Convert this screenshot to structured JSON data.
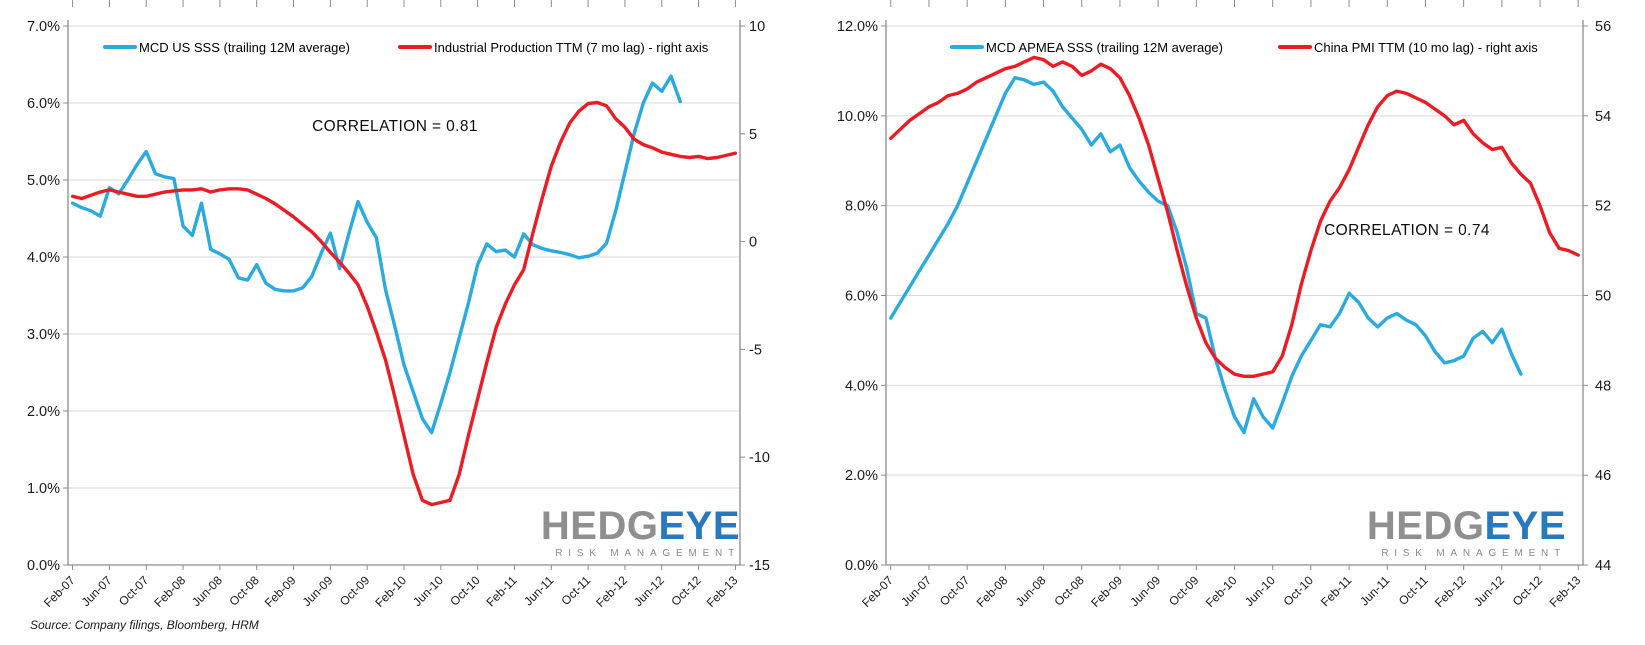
{
  "source_note": "Source: Company filings, Bloomberg, HRM",
  "logo": {
    "gray_part": "HEDG",
    "blue_part": "EYE",
    "tagline": "RISK MANAGEMENT"
  },
  "colors": {
    "blue_series": "#29ABE2",
    "red_series": "#ED1C24",
    "gridline": "#D9D9D9",
    "axis": "#8C8C8C"
  },
  "chart_data": [
    {
      "type": "line",
      "annotation": "CORRELATION  = 0.81",
      "x_tick_labels": [
        "Feb-07",
        "Jun-07",
        "Oct-07",
        "Feb-08",
        "Jun-08",
        "Oct-08",
        "Feb-09",
        "Jun-09",
        "Oct-09",
        "Feb-10",
        "Jun-10",
        "Oct-10",
        "Feb-11",
        "Jun-11",
        "Oct-11",
        "Feb-12",
        "Jun-12",
        "Oct-12",
        "Feb-13"
      ],
      "left_axis": {
        "min": 0,
        "max": 7,
        "tick_labels": [
          "7.0%",
          "6.0%",
          "5.0%",
          "4.0%",
          "3.0%",
          "2.0%",
          "1.0%",
          "0.0%"
        ]
      },
      "right_axis": {
        "min": -15,
        "max": 10,
        "tick_labels": [
          "10",
          "5",
          "0",
          "-5",
          "-10",
          "-15"
        ]
      },
      "series": [
        {
          "name": "MCD US SSS (trailing 12M average)",
          "color": "#29ABE2",
          "axis": "left",
          "start_month": "Feb-07",
          "end_month": "Aug-12",
          "values": [
            4.7,
            4.64,
            4.6,
            4.53,
            4.9,
            4.82,
            5.0,
            5.2,
            5.37,
            5.08,
            5.04,
            5.02,
            4.4,
            4.28,
            4.7,
            4.1,
            4.04,
            3.97,
            3.73,
            3.7,
            3.9,
            3.66,
            3.58,
            3.56,
            3.56,
            3.6,
            3.75,
            4.05,
            4.31,
            3.85,
            4.3,
            4.72,
            4.45,
            4.25,
            3.57,
            3.1,
            2.6,
            2.25,
            1.9,
            1.72,
            2.1,
            2.5,
            2.95,
            3.4,
            3.9,
            4.17,
            4.07,
            4.09,
            4.0,
            4.3,
            4.16,
            4.11,
            4.08,
            4.06,
            4.03,
            3.99,
            4.01,
            4.05,
            4.18,
            4.6,
            5.1,
            5.6,
            6.0,
            6.26,
            6.15,
            6.35,
            6.02
          ]
        },
        {
          "name": "Industrial Production TTM (7 mo lag) - right axis",
          "color": "#ED1C24",
          "axis": "right",
          "start_month": "Feb-07",
          "end_month": "Feb-13",
          "values": [
            2.1,
            2.0,
            2.15,
            2.3,
            2.4,
            2.3,
            2.2,
            2.1,
            2.1,
            2.2,
            2.3,
            2.35,
            2.4,
            2.4,
            2.45,
            2.3,
            2.4,
            2.45,
            2.45,
            2.4,
            2.2,
            2.0,
            1.75,
            1.45,
            1.15,
            0.8,
            0.45,
            0.0,
            -0.5,
            -0.95,
            -1.45,
            -2.0,
            -3.0,
            -4.2,
            -5.5,
            -7.2,
            -9.0,
            -10.8,
            -12.0,
            -12.2,
            -12.1,
            -12.0,
            -10.8,
            -9.0,
            -7.3,
            -5.6,
            -4.0,
            -2.9,
            -2.0,
            -1.3,
            0.4,
            2.0,
            3.5,
            4.6,
            5.5,
            6.05,
            6.4,
            6.45,
            6.3,
            5.7,
            5.3,
            4.75,
            4.5,
            4.35,
            4.15,
            4.05,
            3.95,
            3.9,
            3.95,
            3.85,
            3.9,
            4.0,
            4.1
          ]
        }
      ]
    },
    {
      "type": "line",
      "annotation": "CORRELATION  = 0.74",
      "x_tick_labels": [
        "Feb-07",
        "Jun-07",
        "Oct-07",
        "Feb-08",
        "Jun-08",
        "Oct-08",
        "Feb-09",
        "Jun-09",
        "Oct-09",
        "Feb-10",
        "Jun-10",
        "Oct-10",
        "Feb-11",
        "Jun-11",
        "Oct-11",
        "Feb-12",
        "Jun-12",
        "Oct-12",
        "Feb-13"
      ],
      "left_axis": {
        "min": 0,
        "max": 12,
        "tick_labels": [
          "12.0%",
          "10.0%",
          "8.0%",
          "6.0%",
          "4.0%",
          "2.0%",
          "0.0%"
        ]
      },
      "right_axis": {
        "min": 44,
        "max": 56,
        "tick_labels": [
          "56",
          "54",
          "52",
          "50",
          "48",
          "46",
          "44"
        ]
      },
      "series": [
        {
          "name": "MCD APMEA SSS (trailing 12M average)",
          "color": "#29ABE2",
          "axis": "left",
          "start_month": "Feb-07",
          "end_month": "Aug-12",
          "values": [
            5.5,
            5.85,
            6.2,
            6.55,
            6.9,
            7.25,
            7.6,
            8.0,
            8.5,
            9.0,
            9.5,
            10.0,
            10.5,
            10.85,
            10.8,
            10.7,
            10.75,
            10.55,
            10.2,
            9.95,
            9.7,
            9.35,
            9.6,
            9.2,
            9.35,
            8.85,
            8.55,
            8.3,
            8.1,
            8.0,
            7.4,
            6.6,
            5.6,
            5.5,
            4.6,
            3.9,
            3.3,
            2.95,
            3.7,
            3.3,
            3.05,
            3.6,
            4.2,
            4.65,
            5.0,
            5.35,
            5.3,
            5.6,
            6.05,
            5.85,
            5.5,
            5.3,
            5.5,
            5.6,
            5.45,
            5.35,
            5.1,
            4.75,
            4.5,
            4.55,
            4.65,
            5.05,
            5.2,
            4.95,
            5.25,
            4.7,
            4.25
          ]
        },
        {
          "name": "China PMI TTM (10 mo lag) - right axis",
          "color": "#ED1C24",
          "axis": "right",
          "start_month": "Feb-07",
          "end_month": "Feb-13",
          "values": [
            53.5,
            53.7,
            53.9,
            54.05,
            54.2,
            54.3,
            54.45,
            54.5,
            54.6,
            54.75,
            54.85,
            54.95,
            55.05,
            55.1,
            55.2,
            55.3,
            55.25,
            55.1,
            55.2,
            55.1,
            54.9,
            55.0,
            55.15,
            55.05,
            54.85,
            54.45,
            53.95,
            53.35,
            52.6,
            51.85,
            51.0,
            50.2,
            49.5,
            48.95,
            48.6,
            48.4,
            48.25,
            48.2,
            48.2,
            48.25,
            48.3,
            48.65,
            49.35,
            50.25,
            51.0,
            51.65,
            52.1,
            52.4,
            52.8,
            53.3,
            53.8,
            54.2,
            54.45,
            54.55,
            54.5,
            54.4,
            54.3,
            54.15,
            54.0,
            53.8,
            53.9,
            53.6,
            53.4,
            53.25,
            53.3,
            52.95,
            52.7,
            52.5,
            52.0,
            51.4,
            51.05,
            51.0,
            50.9
          ]
        }
      ]
    }
  ]
}
